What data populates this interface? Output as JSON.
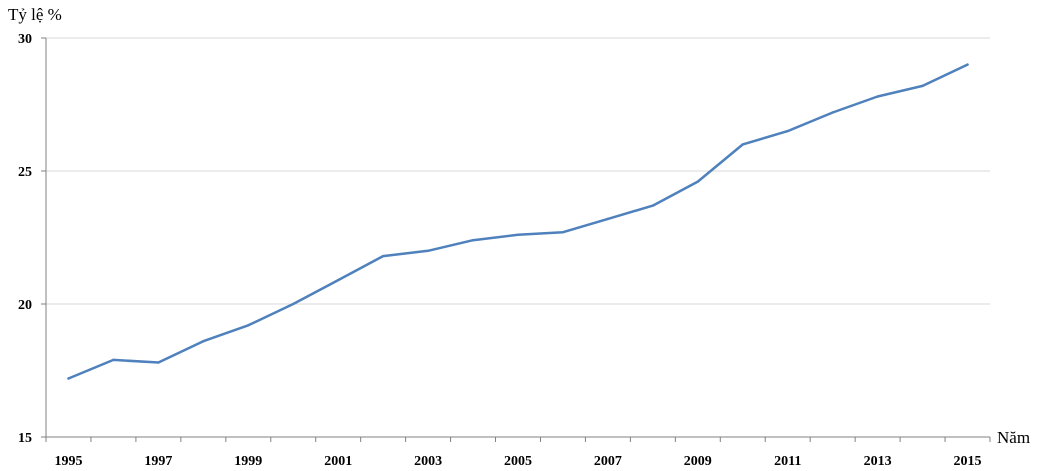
{
  "chart_data": {
    "type": "line",
    "xlabel": "Năm",
    "ylabel": "Tỷ lệ %",
    "x": [
      1995,
      1996,
      1997,
      1998,
      1999,
      2000,
      2001,
      2002,
      2003,
      2004,
      2005,
      2006,
      2007,
      2008,
      2009,
      2010,
      2011,
      2012,
      2013,
      2014,
      2015
    ],
    "x_tick_labels": [
      "1995",
      "1997",
      "1999",
      "2001",
      "2003",
      "2005",
      "2007",
      "2009",
      "2011",
      "2013",
      "2015"
    ],
    "series": [
      {
        "values": [
          17.2,
          17.9,
          17.8,
          18.6,
          19.2,
          20.0,
          20.9,
          21.8,
          22.0,
          22.4,
          22.6,
          22.7,
          23.2,
          23.7,
          24.6,
          26.0,
          26.5,
          27.2,
          27.8,
          28.2,
          29.0
        ],
        "color": "#4f81bd"
      }
    ],
    "ylim": [
      15,
      30
    ],
    "y_ticks": [
      15,
      20,
      25,
      30
    ],
    "grid": true,
    "legend": "none"
  }
}
